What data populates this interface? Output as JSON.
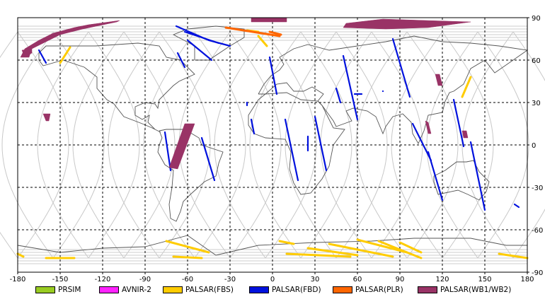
{
  "chart_data": {
    "type": "map",
    "projection": "equirectangular",
    "xlim": [
      -180,
      180
    ],
    "ylim": [
      -90,
      90
    ],
    "grid": true,
    "x_ticks": [
      "-180",
      "-150",
      "-120",
      "-90",
      "-60",
      "-30",
      "0",
      "30",
      "60",
      "90",
      "120",
      "150",
      "180"
    ],
    "y_ticks_right": [
      "90",
      "60",
      "30",
      "0",
      "-30",
      "-60",
      "-90"
    ],
    "legend": [
      {
        "label": "PRSIM",
        "color": "#99cc22"
      },
      {
        "label": "AVNIR-2",
        "color": "#ff22ff"
      },
      {
        "label": "PALSAR(FBS)",
        "color": "#ffcc00"
      },
      {
        "label": "PALSAR(FBD)",
        "color": "#0011dd"
      },
      {
        "label": "PALSAR(PLR)",
        "color": "#ff6600"
      },
      {
        "label": "PALSAR(WB1/WB2)",
        "color": "#993366"
      }
    ],
    "series": [
      {
        "name": "PALSAR(FBD)",
        "segments": [
          [
            [
              -165,
              67
            ],
            [
              -160,
              58
            ]
          ],
          [
            [
              -60,
              74
            ],
            [
              -43,
              60
            ]
          ],
          [
            [
              -68,
              84
            ],
            [
              -45,
              74
            ],
            [
              -30,
              70
            ]
          ],
          [
            [
              -62,
              80
            ],
            [
              -38,
              72
            ]
          ],
          [
            [
              -67,
              65
            ],
            [
              -62,
              55
            ]
          ],
          [
            [
              -76,
              9
            ],
            [
              -72,
              -18
            ]
          ],
          [
            [
              -50,
              5
            ],
            [
              -41,
              -25
            ]
          ],
          [
            [
              -18,
              30
            ],
            [
              -18,
              28
            ]
          ],
          [
            [
              -15,
              18
            ],
            [
              -13,
              8
            ]
          ],
          [
            [
              -2,
              62
            ],
            [
              3,
              36
            ]
          ],
          [
            [
              9,
              18
            ],
            [
              18,
              -25
            ]
          ],
          [
            [
              25,
              6
            ],
            [
              25,
              -4
            ]
          ],
          [
            [
              30,
              20
            ],
            [
              38,
              -18
            ]
          ],
          [
            [
              45,
              40
            ],
            [
              48,
              30
            ]
          ],
          [
            [
              63,
              36
            ],
            [
              58,
              36
            ]
          ],
          [
            [
              50,
              63
            ],
            [
              60,
              18
            ]
          ],
          [
            [
              85,
              75
            ],
            [
              97,
              34
            ]
          ],
          [
            [
              78,
              38
            ],
            [
              78,
              38
            ]
          ],
          [
            [
              99,
              15
            ],
            [
              112,
              -11
            ]
          ],
          [
            [
              110,
              -5
            ],
            [
              120,
              -39
            ]
          ],
          [
            [
              128,
              32
            ],
            [
              135,
              -1
            ]
          ],
          [
            [
              140,
              2
            ],
            [
              150,
              -46
            ]
          ],
          [
            [
              171,
              -42
            ],
            [
              174,
              -44
            ]
          ]
        ]
      },
      {
        "name": "PALSAR(FBS)",
        "segments": [
          [
            [
              -143,
              69
            ],
            [
              -150,
              58
            ]
          ],
          [
            [
              -75,
              -68
            ],
            [
              -45,
              -76
            ]
          ],
          [
            [
              5,
              -68
            ],
            [
              15,
              -70
            ]
          ],
          [
            [
              25,
              -73
            ],
            [
              60,
              -78
            ]
          ],
          [
            [
              40,
              -70
            ],
            [
              85,
              -79
            ]
          ],
          [
            [
              60,
              -67
            ],
            [
              95,
              -76
            ]
          ],
          [
            [
              75,
              -68
            ],
            [
              105,
              -80
            ]
          ],
          [
            [
              90,
              -69
            ],
            [
              105,
              -76
            ]
          ],
          [
            [
              10,
              -77
            ],
            [
              55,
              -79
            ]
          ],
          [
            [
              -70,
              -79
            ],
            [
              -50,
              -80
            ]
          ],
          [
            [
              -180,
              -77
            ],
            [
              -176,
              -79
            ]
          ],
          [
            [
              -160,
              -80
            ],
            [
              -140,
              -80
            ]
          ],
          [
            [
              160,
              -77
            ],
            [
              180,
              -80
            ]
          ],
          [
            [
              140,
              48
            ],
            [
              134,
              34
            ]
          ],
          [
            [
              -18,
              81
            ],
            [
              -10,
              80
            ]
          ],
          [
            [
              -10,
              77
            ],
            [
              -4,
              70
            ]
          ]
        ]
      },
      {
        "name": "PALSAR(PLR)",
        "segments": [
          [
            [
              -33,
              83
            ],
            [
              5,
              77
            ]
          ],
          [
            [
              -2,
              80
            ],
            [
              6,
              78
            ]
          ]
        ]
      },
      {
        "name": "PALSAR(WB1/WB2)",
        "polygons": [
          [
            [
              -178,
              62
            ],
            [
              -175,
              68
            ],
            [
              -165,
              74
            ],
            [
              -155,
              79
            ],
            [
              -140,
              83
            ],
            [
              -130,
              85
            ],
            [
              -108,
              88
            ],
            [
              -110,
              87
            ],
            [
              -134,
              82
            ],
            [
              -150,
              78
            ],
            [
              -160,
              73
            ],
            [
              -170,
              68
            ],
            [
              -172,
              62
            ]
          ],
          [
            [
              -175,
              62
            ],
            [
              -170,
              65
            ],
            [
              -170,
              68
            ],
            [
              -177,
              67
            ]
          ],
          [
            [
              -15,
              90
            ],
            [
              10,
              90
            ],
            [
              10,
              87
            ],
            [
              -15,
              87
            ]
          ],
          [
            [
              52,
              86
            ],
            [
              78,
              89
            ],
            [
              140,
              87
            ],
            [
              110,
              83
            ],
            [
              80,
              82
            ],
            [
              50,
              83
            ]
          ],
          [
            [
              -162,
              22
            ],
            [
              -157,
              22
            ],
            [
              -158,
              17
            ],
            [
              -160,
              17
            ]
          ],
          [
            [
              -62,
              15
            ],
            [
              -55,
              15
            ],
            [
              -67,
              -17
            ],
            [
              -73,
              -16
            ]
          ],
          [
            [
              115,
              50
            ],
            [
              118,
              50
            ],
            [
              120,
              42
            ],
            [
              117,
              42
            ]
          ],
          [
            [
              108,
              17
            ],
            [
              110,
              16
            ],
            [
              112,
              8
            ],
            [
              110,
              8
            ]
          ],
          [
            [
              134,
              10
            ],
            [
              137,
              10
            ],
            [
              138,
              5
            ],
            [
              135,
              5
            ]
          ]
        ]
      }
    ]
  }
}
